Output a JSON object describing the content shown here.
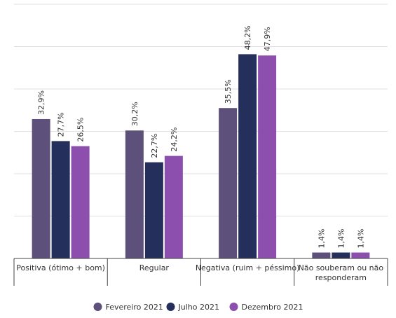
{
  "chart_data": {
    "type": "bar",
    "categories": [
      [
        "Positiva (ótimo + bom)"
      ],
      [
        "Regular"
      ],
      [
        "Negativa (ruim + péssimo)"
      ],
      [
        "Não souberam ou não",
        "responderam"
      ]
    ],
    "series": [
      {
        "name": "Fevereiro 2021",
        "color": "#5d517c",
        "values": [
          32.9,
          30.2,
          35.5,
          1.4
        ],
        "labels": [
          "32,9%",
          "30,2%",
          "35,5%",
          "1,4%"
        ]
      },
      {
        "name": "Julho 2021",
        "color": "#252f5b",
        "values": [
          27.7,
          22.7,
          48.2,
          1.4
        ],
        "labels": [
          "27,7%",
          "22,7%",
          "48,2%",
          "1,4%"
        ]
      },
      {
        "name": "Dezembro 2021",
        "color": "#8c4fae",
        "values": [
          26.5,
          24.2,
          47.9,
          1.4
        ],
        "labels": [
          "26,5%",
          "24,2%",
          "47,9%",
          "1,4%"
        ]
      }
    ],
    "ylim": [
      0,
      60
    ],
    "grid": true,
    "legend": "bottom-center",
    "title": "",
    "xlabel": "",
    "ylabel": ""
  }
}
